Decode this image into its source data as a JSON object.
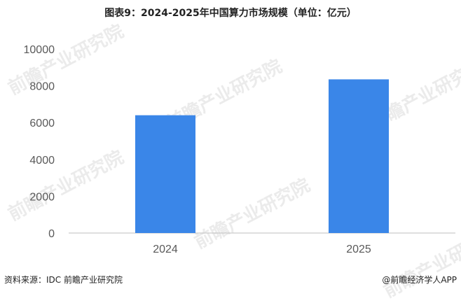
{
  "title": "图表9：2024-2025年中国算力市场规模（单位：亿元）",
  "source": "资料来源：IDC  前瞻产业研究院",
  "credit": "@前瞻经济学人APP",
  "watermark_text": "前瞻产业研究院",
  "chart_data": {
    "type": "bar",
    "categories": [
      "2024",
      "2025"
    ],
    "values": [
      6400,
      8350
    ],
    "ylim": [
      0,
      10000
    ],
    "yticks": [
      0,
      2000,
      4000,
      6000,
      8000,
      10000
    ],
    "grid": false,
    "bar_color": "#3a86e8",
    "axis_color": "#bfbfbf",
    "text_color": "#595959"
  }
}
